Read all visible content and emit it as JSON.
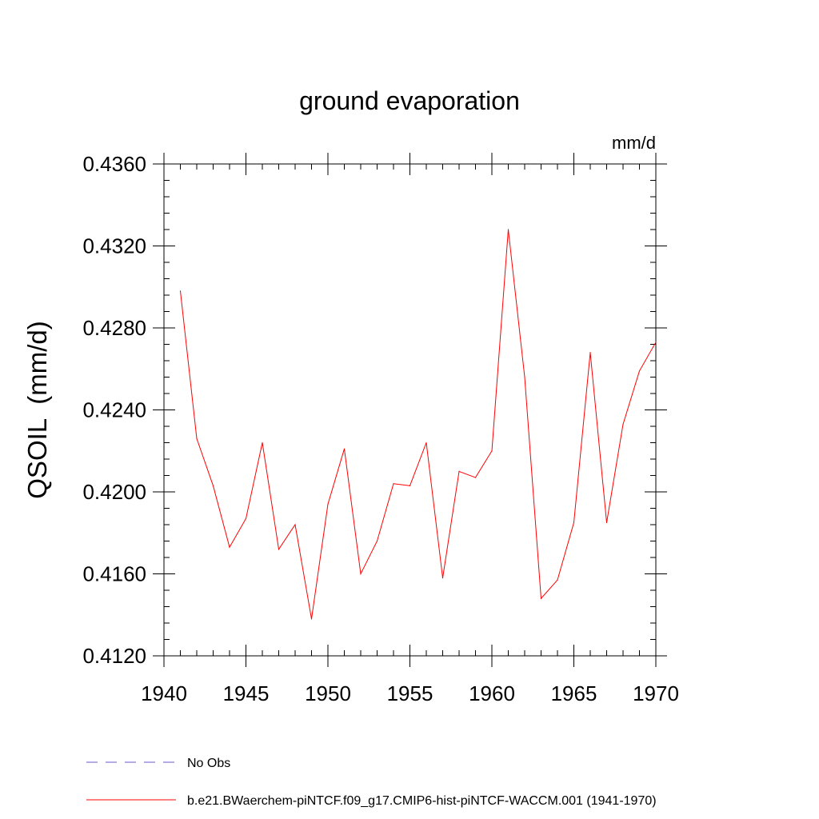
{
  "chart_data": {
    "type": "line",
    "title": "ground evaporation",
    "units": "mm/d",
    "ylabel": "QSOIL  (mm/d)",
    "xlabel": "",
    "xlim": [
      1940,
      1970
    ],
    "ylim": [
      0.412,
      0.436
    ],
    "xticks": [
      "1940",
      "1945",
      "1950",
      "1955",
      "1960",
      "1965",
      "1970"
    ],
    "yticks": [
      "0.4120",
      "0.4160",
      "0.4200",
      "0.4240",
      "0.4280",
      "0.4320",
      "0.4360"
    ],
    "grid": false,
    "legend_placement": "bottom",
    "series": [
      {
        "name": "No Obs",
        "color": "#6a5acd",
        "style": "dashed",
        "x": [],
        "y": []
      },
      {
        "name": "b.e21.BWaerchem-piNTCF.f09_g17.CMIP6-hist-piNTCF-WACCM.001 (1941-1970)",
        "color": "#ff0000",
        "style": "solid",
        "x": [
          1941,
          1942,
          1943,
          1944,
          1945,
          1946,
          1947,
          1948,
          1949,
          1950,
          1951,
          1952,
          1953,
          1954,
          1955,
          1956,
          1957,
          1958,
          1959,
          1960,
          1961,
          1962,
          1963,
          1964,
          1965,
          1966,
          1967,
          1968,
          1969,
          1970
        ],
        "y": [
          0.4298,
          0.4226,
          0.4203,
          0.4173,
          0.4187,
          0.4224,
          0.4172,
          0.4184,
          0.4138,
          0.4194,
          0.4221,
          0.416,
          0.4176,
          0.4204,
          0.4203,
          0.4224,
          0.4158,
          0.421,
          0.4207,
          0.422,
          0.4328,
          0.4256,
          0.4148,
          0.4157,
          0.4185,
          0.4268,
          0.4185,
          0.4233,
          0.4259,
          0.4273
        ]
      }
    ]
  }
}
